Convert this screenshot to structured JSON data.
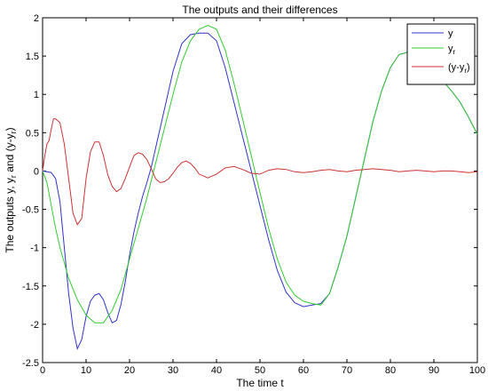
{
  "chart_data": {
    "type": "line",
    "title": "The outputs and their differences",
    "xlabel": "The time t",
    "ylabel": "The outputs y, y",
    "ylabel_sub": "r",
    "ylabel_mid": " and (y-y",
    "ylabel_sub2": "r",
    "ylabel_end": ")",
    "xlim": [
      0,
      100
    ],
    "ylim": [
      -2.5,
      2
    ],
    "xticks": [
      0,
      10,
      20,
      30,
      40,
      50,
      60,
      70,
      80,
      90,
      100
    ],
    "yticks": [
      -2.5,
      -2,
      -1.5,
      -1,
      -0.5,
      0,
      0.5,
      1,
      1.5,
      2
    ],
    "xtick_labels": [
      "0",
      "10",
      "20",
      "30",
      "40",
      "50",
      "60",
      "70",
      "80",
      "90",
      "100"
    ],
    "ytick_labels": [
      "-2.5",
      "-2",
      "-1.5",
      "-1",
      "-0.5",
      "0",
      "0.5",
      "1",
      "1.5",
      "2"
    ],
    "grid": false,
    "legend_position": "top-right",
    "series": [
      {
        "name": "y",
        "color": "#3333cc",
        "x": [
          0,
          2,
          3,
          4,
          5,
          6,
          7,
          8,
          9,
          10,
          11,
          12,
          13,
          14,
          15,
          16,
          17,
          18,
          19,
          20,
          21,
          22,
          23,
          24,
          25,
          26,
          28,
          30,
          32,
          34,
          36,
          38,
          40,
          42,
          44,
          46,
          48,
          50,
          52,
          54,
          56,
          58,
          60,
          62,
          64,
          66,
          68,
          70,
          72,
          74,
          76,
          78,
          80,
          82,
          84,
          86,
          88,
          90,
          92,
          94,
          96,
          98,
          100
        ],
        "y": [
          0,
          -0.02,
          -0.1,
          -0.4,
          -1.0,
          -1.6,
          -2.05,
          -2.32,
          -2.2,
          -1.9,
          -1.7,
          -1.62,
          -1.6,
          -1.68,
          -1.85,
          -1.98,
          -1.95,
          -1.75,
          -1.45,
          -1.1,
          -0.8,
          -0.55,
          -0.33,
          -0.15,
          0.05,
          0.3,
          0.8,
          1.3,
          1.66,
          1.78,
          1.8,
          1.8,
          1.7,
          1.35,
          0.9,
          0.45,
          0.0,
          -0.45,
          -0.9,
          -1.3,
          -1.58,
          -1.72,
          -1.77,
          -1.75,
          -1.73,
          -1.6,
          -1.25,
          -0.85,
          -0.35,
          0.15,
          0.65,
          1.05,
          1.35,
          1.52,
          1.55,
          1.5,
          1.4,
          1.3,
          1.18,
          1.05,
          0.9,
          0.7,
          0.48
        ]
      },
      {
        "name": "y",
        "name_sub": "r",
        "color": "#33cc33",
        "x": [
          0,
          1,
          2,
          3,
          4,
          5,
          6,
          8,
          10,
          12,
          14,
          16,
          18,
          20,
          22,
          24,
          26,
          28,
          30,
          32,
          34,
          36,
          38,
          40,
          42,
          44,
          46,
          48,
          50,
          52,
          54,
          56,
          58,
          60,
          62,
          64,
          66,
          68,
          70,
          72,
          74,
          76,
          78,
          80,
          82,
          84,
          86,
          88,
          90,
          92,
          94,
          96,
          98,
          100
        ],
        "y": [
          0,
          -0.15,
          -0.45,
          -0.75,
          -1.0,
          -1.2,
          -1.4,
          -1.68,
          -1.88,
          -1.98,
          -1.98,
          -1.82,
          -1.55,
          -1.15,
          -0.75,
          -0.35,
          0.1,
          0.55,
          1.0,
          1.42,
          1.7,
          1.85,
          1.9,
          1.85,
          1.58,
          1.15,
          0.68,
          0.2,
          -0.28,
          -0.75,
          -1.15,
          -1.45,
          -1.62,
          -1.7,
          -1.73,
          -1.75,
          -1.6,
          -1.25,
          -0.85,
          -0.35,
          0.15,
          0.65,
          1.05,
          1.35,
          1.52,
          1.55,
          1.5,
          1.4,
          1.3,
          1.18,
          1.05,
          0.9,
          0.7,
          0.48
        ]
      },
      {
        "name": "(y-y",
        "name_sub": "r",
        "name_end": ")",
        "color": "#cc3333",
        "x": [
          0,
          0.5,
          1,
          1.5,
          2,
          2.5,
          3,
          4,
          5,
          6,
          7,
          8,
          9,
          10,
          11,
          12,
          13,
          14,
          15,
          16,
          17,
          18,
          19,
          20,
          21,
          22,
          23,
          24,
          25,
          26,
          27,
          28,
          29,
          30,
          31,
          32,
          33,
          34,
          35,
          36,
          38,
          40,
          42,
          44,
          46,
          48,
          50,
          52,
          54,
          56,
          58,
          60,
          62,
          64,
          66,
          68,
          70,
          72,
          74,
          76,
          78,
          80,
          82,
          84,
          86,
          88,
          90,
          92,
          94,
          96,
          98,
          100
        ],
        "y": [
          0,
          0.2,
          0.35,
          0.4,
          0.55,
          0.68,
          0.68,
          0.63,
          0.35,
          -0.1,
          -0.55,
          -0.7,
          -0.62,
          -0.1,
          0.25,
          0.38,
          0.38,
          0.2,
          -0.05,
          -0.2,
          -0.27,
          -0.23,
          -0.1,
          0.05,
          0.2,
          0.24,
          0.22,
          0.15,
          0.03,
          -0.1,
          -0.15,
          -0.14,
          -0.1,
          -0.03,
          0.05,
          0.11,
          0.13,
          0.1,
          0.04,
          -0.04,
          -0.09,
          -0.04,
          0.04,
          0.06,
          0.02,
          -0.03,
          -0.04,
          0.01,
          0.03,
          0.02,
          -0.01,
          -0.02,
          -0.01,
          0.01,
          0.02,
          0.0,
          -0.01,
          0.01,
          0.02,
          0.03,
          0.02,
          0.01,
          -0.01,
          0.0,
          0.01,
          0.0,
          -0.01,
          0.0,
          0.0,
          -0.01,
          -0.02,
          -0.01
        ]
      }
    ]
  }
}
